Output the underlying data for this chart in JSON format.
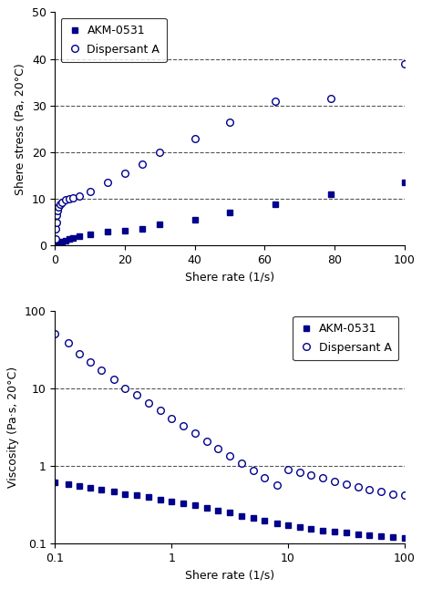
{
  "top_chart": {
    "xlabel": "Shere rate (1/s)",
    "ylabel": "Shere stress (Pa, 20°C)",
    "xlim": [
      0,
      100
    ],
    "ylim": [
      0,
      50
    ],
    "yticks": [
      0,
      10,
      20,
      30,
      40,
      50
    ],
    "xticks": [
      0,
      20,
      40,
      60,
      80,
      100
    ],
    "akm_x": [
      0.1,
      0.2,
      0.3,
      0.5,
      0.7,
      1.0,
      1.5,
      2.0,
      3.0,
      4.0,
      5.0,
      7.0,
      10.0,
      15.0,
      20.0,
      25.0,
      30.0,
      40.0,
      50.0,
      63.0,
      79.0,
      100.0
    ],
    "akm_y": [
      0.08,
      0.12,
      0.18,
      0.28,
      0.38,
      0.5,
      0.65,
      0.85,
      1.1,
      1.35,
      1.6,
      2.0,
      2.4,
      2.9,
      3.2,
      3.5,
      4.5,
      5.5,
      7.0,
      8.8,
      11.0,
      13.5
    ],
    "disp_x": [
      0.1,
      0.2,
      0.3,
      0.5,
      0.7,
      1.0,
      1.5,
      2.0,
      3.0,
      4.0,
      5.0,
      7.0,
      10.0,
      15.0,
      20.0,
      25.0,
      30.0,
      40.0,
      50.0,
      63.0,
      79.0,
      100.0
    ],
    "disp_y": [
      1.5,
      3.5,
      5.0,
      6.5,
      7.5,
      8.2,
      8.8,
      9.3,
      9.8,
      10.0,
      10.2,
      10.6,
      11.5,
      13.5,
      15.5,
      17.5,
      20.0,
      23.0,
      26.5,
      31.0,
      31.5,
      39.0
    ],
    "akm_color": "#00008B",
    "disp_color": "#00008B",
    "grid_color": "#555555"
  },
  "bottom_chart": {
    "xlabel": "Shere rate (1/s)",
    "ylabel": "Viscosity (Pa·s, 20°C)",
    "xlim": [
      0.1,
      100
    ],
    "ylim": [
      0.1,
      100
    ],
    "akm_x": [
      0.1,
      0.13,
      0.16,
      0.2,
      0.25,
      0.32,
      0.4,
      0.5,
      0.63,
      0.8,
      1.0,
      1.26,
      1.58,
      2.0,
      2.5,
      3.16,
      4.0,
      5.0,
      6.3,
      8.0,
      10.0,
      12.6,
      15.8,
      20.0,
      25.1,
      31.6,
      39.8,
      50.1,
      63.1,
      79.4,
      100.0
    ],
    "akm_y": [
      0.62,
      0.59,
      0.56,
      0.53,
      0.5,
      0.47,
      0.44,
      0.42,
      0.4,
      0.37,
      0.35,
      0.33,
      0.31,
      0.29,
      0.27,
      0.25,
      0.23,
      0.215,
      0.2,
      0.185,
      0.175,
      0.165,
      0.155,
      0.148,
      0.143,
      0.138,
      0.133,
      0.128,
      0.125,
      0.122,
      0.12
    ],
    "disp_x": [
      0.1,
      0.13,
      0.16,
      0.2,
      0.25,
      0.32,
      0.4,
      0.5,
      0.63,
      0.8,
      1.0,
      1.26,
      1.58,
      2.0,
      2.5,
      3.16,
      4.0,
      5.0,
      6.3,
      8.0,
      10.0,
      12.6,
      15.8,
      20.0,
      25.1,
      31.6,
      39.8,
      50.1,
      63.1,
      79.4,
      100.0
    ],
    "disp_y": [
      50.0,
      38.0,
      28.0,
      22.0,
      17.0,
      13.0,
      10.0,
      8.2,
      6.5,
      5.2,
      4.1,
      3.3,
      2.65,
      2.1,
      1.68,
      1.35,
      1.08,
      0.87,
      0.7,
      0.57,
      0.9,
      0.82,
      0.76,
      0.7,
      0.64,
      0.58,
      0.54,
      0.5,
      0.47,
      0.44,
      0.42
    ],
    "akm_color": "#00008B",
    "disp_color": "#00008B",
    "grid_color": "#555555"
  },
  "legend_akm_label": "AKM-0531",
  "legend_disp_label": "Dispersant A",
  "fig_width": 4.64,
  "fig_height": 6.46,
  "dpi": 100
}
